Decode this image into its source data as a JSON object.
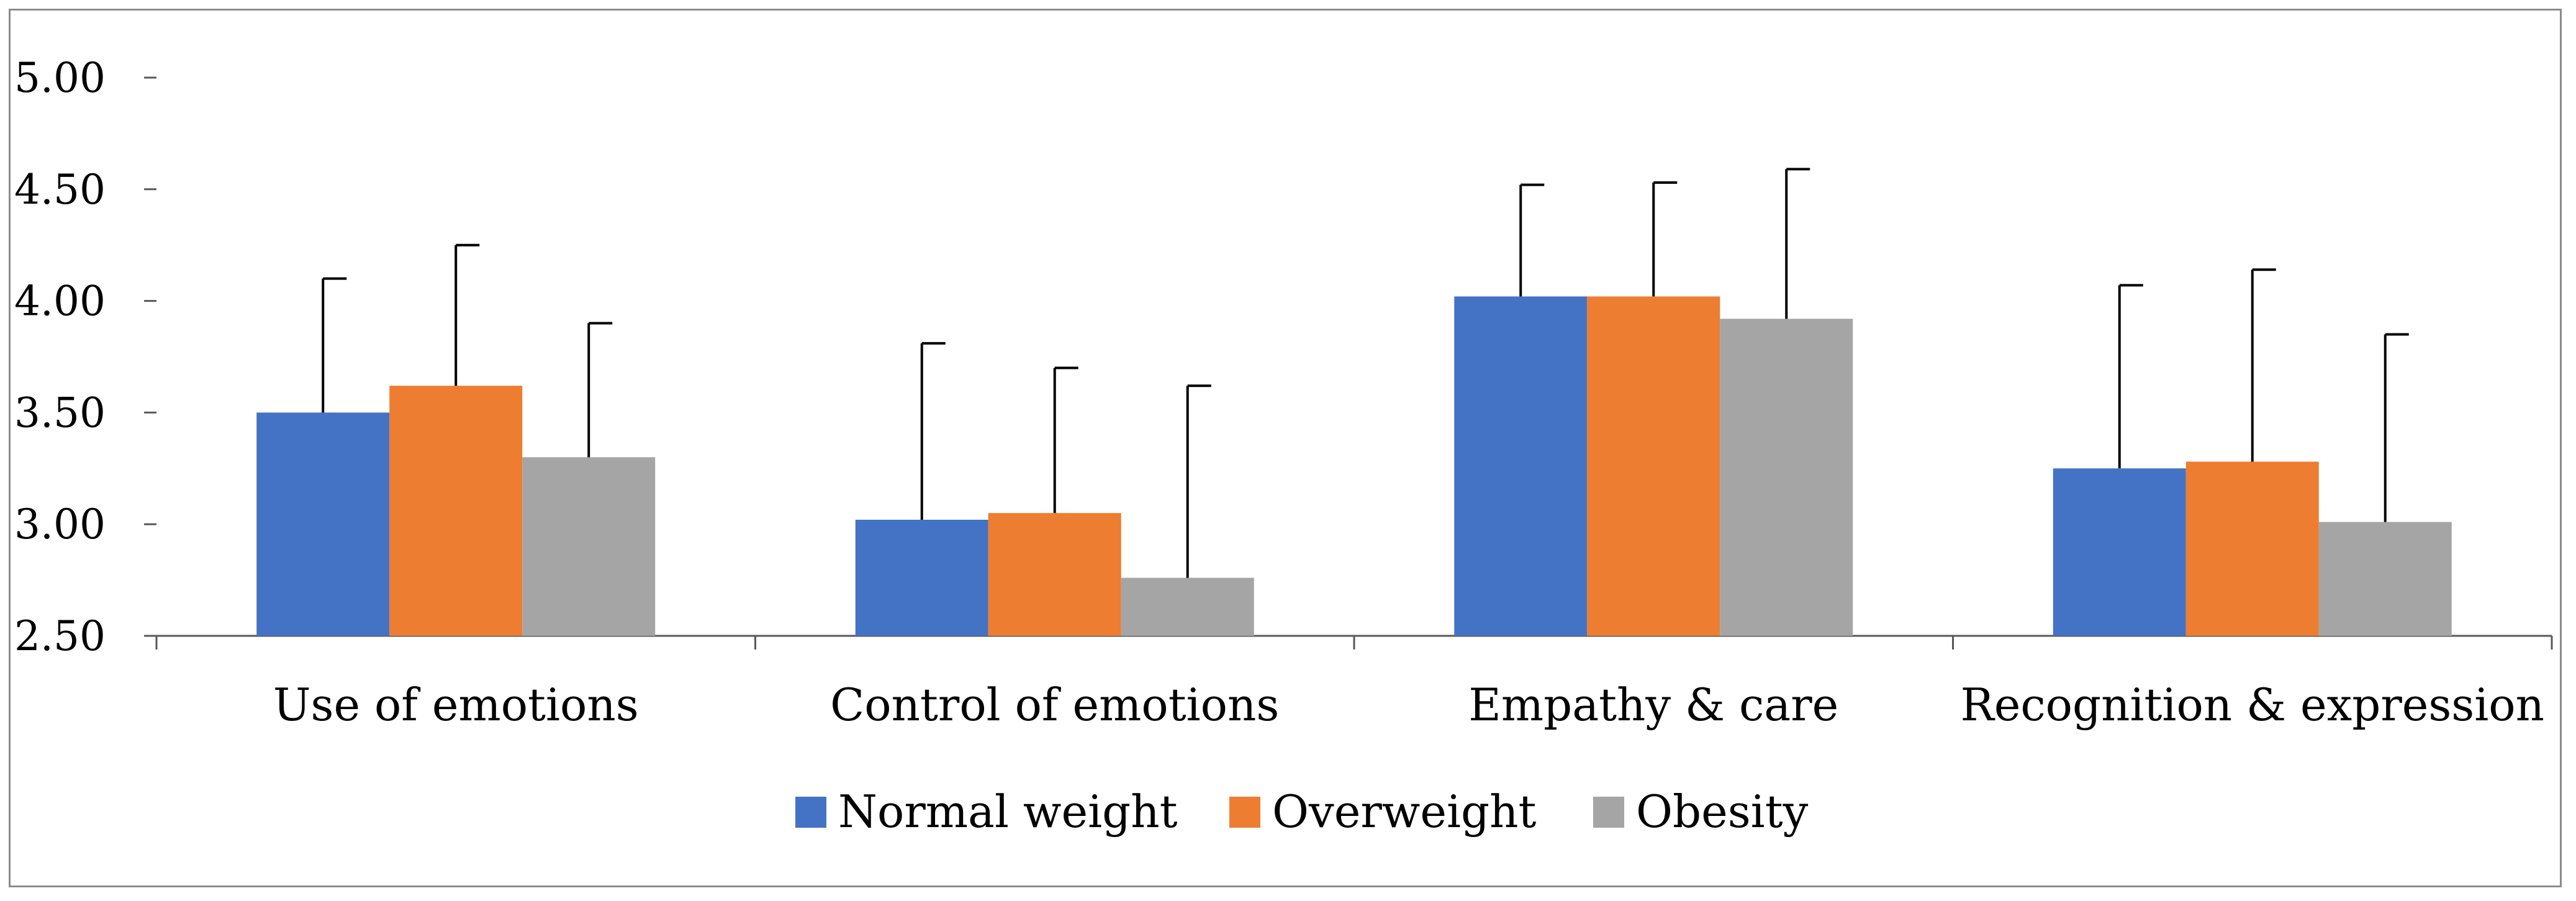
{
  "chart_data": {
    "type": "bar",
    "title": "",
    "xlabel": "",
    "ylabel": "",
    "ylim": [
      2.5,
      5.0
    ],
    "yticks": [
      "2.50",
      "3.00",
      "3.50",
      "4.00",
      "4.50",
      "5.00"
    ],
    "categories": [
      "Use of emotions",
      "Control of emotions",
      "Empathy & care",
      "Recognition & expression"
    ],
    "series": [
      {
        "name": "Normal weight",
        "color": "#4472C4",
        "values": [
          3.5,
          3.02,
          4.02,
          3.25
        ],
        "errors": [
          0.6,
          0.79,
          0.5,
          0.82
        ]
      },
      {
        "name": "Overweight",
        "color": "#ED7D31",
        "values": [
          3.62,
          3.05,
          4.02,
          3.28
        ],
        "errors": [
          0.63,
          0.65,
          0.51,
          0.86
        ]
      },
      {
        "name": "Obesity",
        "color": "#A5A5A5",
        "values": [
          3.3,
          2.76,
          3.92,
          3.01
        ],
        "errors": [
          0.6,
          0.86,
          0.67,
          0.84
        ]
      }
    ],
    "grid": false,
    "legend_position": "bottom",
    "error_bars": "positive"
  }
}
